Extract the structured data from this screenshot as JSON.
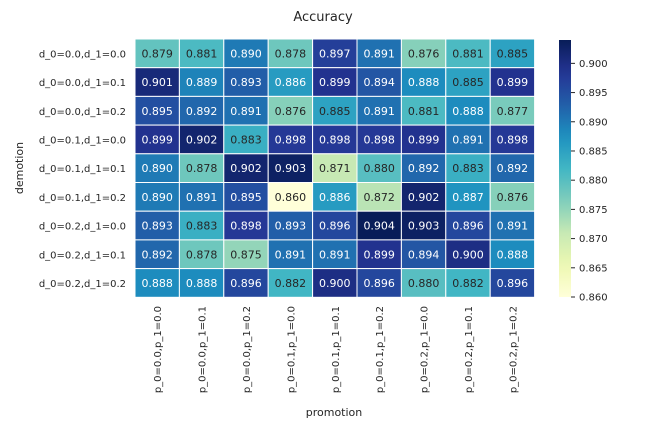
{
  "chart_data": {
    "type": "heatmap",
    "title": "Accuracy",
    "xlabel": "promotion",
    "ylabel": "demotion",
    "x_categories": [
      "p_0=0.0,p_1=0.0",
      "p_0=0.0,p_1=0.1",
      "p_0=0.0,p_1=0.2",
      "p_0=0.1,p_1=0.0",
      "p_0=0.1,p_1=0.1",
      "p_0=0.1,p_1=0.2",
      "p_0=0.2,p_1=0.0",
      "p_0=0.2,p_1=0.1",
      "p_0=0.2,p_1=0.2"
    ],
    "y_categories": [
      "d_0=0.0,d_1=0.0",
      "d_0=0.0,d_1=0.1",
      "d_0=0.0,d_1=0.2",
      "d_0=0.1,d_1=0.0",
      "d_0=0.1,d_1=0.1",
      "d_0=0.1,d_1=0.2",
      "d_0=0.2,d_1=0.0",
      "d_0=0.2,d_1=0.1",
      "d_0=0.2,d_1=0.2"
    ],
    "values": [
      [
        0.879,
        0.881,
        0.89,
        0.878,
        0.897,
        0.891,
        0.876,
        0.881,
        0.885
      ],
      [
        0.901,
        0.889,
        0.893,
        0.886,
        0.899,
        0.894,
        0.888,
        0.885,
        0.899
      ],
      [
        0.895,
        0.892,
        0.891,
        0.876,
        0.885,
        0.891,
        0.881,
        0.888,
        0.877
      ],
      [
        0.899,
        0.902,
        0.883,
        0.898,
        0.898,
        0.898,
        0.899,
        0.891,
        0.898
      ],
      [
        0.89,
        0.878,
        0.902,
        0.903,
        0.871,
        0.88,
        0.892,
        0.883,
        0.892
      ],
      [
        0.89,
        0.891,
        0.895,
        0.86,
        0.886,
        0.872,
        0.902,
        0.887,
        0.876
      ],
      [
        0.893,
        0.883,
        0.898,
        0.893,
        0.896,
        0.904,
        0.903,
        0.896,
        0.891
      ],
      [
        0.892,
        0.878,
        0.875,
        0.891,
        0.891,
        0.899,
        0.894,
        0.9,
        0.888
      ],
      [
        0.888,
        0.888,
        0.896,
        0.882,
        0.9,
        0.896,
        0.88,
        0.882,
        0.896
      ]
    ],
    "colormap": "YlGnBu",
    "colorbar": {
      "range": [
        0.86,
        0.904
      ],
      "ticks": [
        "0.860",
        "0.865",
        "0.870",
        "0.875",
        "0.880",
        "0.885",
        "0.890",
        "0.895",
        "0.900"
      ]
    },
    "annotations": "on"
  }
}
